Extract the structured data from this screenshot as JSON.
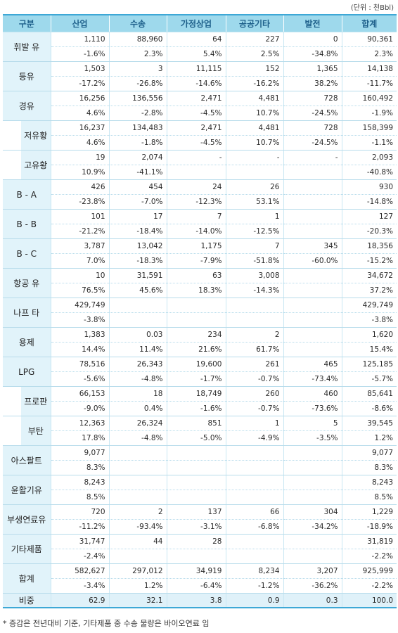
{
  "unit_label": "(단위 : 천Bbl)",
  "headers": [
    "구분",
    "산업",
    "수송",
    "가정상업",
    "공공기타",
    "발전",
    "합계"
  ],
  "rows": [
    {
      "name": "휘발 유",
      "level": 0,
      "values": [
        "1,110",
        "88,960",
        "64",
        "227",
        "0",
        "90,361"
      ],
      "changes": [
        "-1.6%",
        "2.3%",
        "5.4%",
        "2.5%",
        "-34.8%",
        "2.3%"
      ]
    },
    {
      "name": "등유",
      "level": 0,
      "values": [
        "1,503",
        "3",
        "11,115",
        "152",
        "1,365",
        "14,138"
      ],
      "changes": [
        "-17.2%",
        "-26.8%",
        "-14.6%",
        "-16.2%",
        "38.2%",
        "-11.7%"
      ]
    },
    {
      "name": "경유",
      "level": 0,
      "values": [
        "16,256",
        "136,556",
        "2,471",
        "4,481",
        "728",
        "160,492"
      ],
      "changes": [
        "4.6%",
        "-2.8%",
        "-4.5%",
        "10.7%",
        "-24.5%",
        "-1.9%"
      ]
    },
    {
      "name": "저유황",
      "level": 1,
      "values": [
        "16,237",
        "134,483",
        "2,471",
        "4,481",
        "728",
        "158,399"
      ],
      "changes": [
        "4.6%",
        "-1.8%",
        "-4.5%",
        "10.7%",
        "-24.5%",
        "-1.1%"
      ]
    },
    {
      "name": "고유황",
      "level": 1,
      "values": [
        "19",
        "2,074",
        "-",
        "-",
        "-",
        "2,093"
      ],
      "changes": [
        "10.9%",
        "-41.1%",
        "",
        "",
        "",
        "-40.8%"
      ]
    },
    {
      "name": "B - A",
      "level": 0,
      "values": [
        "426",
        "454",
        "24",
        "26",
        "",
        "930"
      ],
      "changes": [
        "-23.8%",
        "-7.0%",
        "-12.3%",
        "53.1%",
        "",
        "-14.8%"
      ]
    },
    {
      "name": "B - B",
      "level": 0,
      "values": [
        "101",
        "17",
        "7",
        "1",
        "",
        "127"
      ],
      "changes": [
        "-21.2%",
        "-18.4%",
        "-14.0%",
        "-12.5%",
        "",
        "-20.3%"
      ]
    },
    {
      "name": "B - C",
      "level": 0,
      "values": [
        "3,787",
        "13,042",
        "1,175",
        "7",
        "345",
        "18,356"
      ],
      "changes": [
        "7.0%",
        "-18.3%",
        "-7.9%",
        "-51.8%",
        "-60.0%",
        "-15.2%"
      ]
    },
    {
      "name": "항공 유",
      "level": 0,
      "values": [
        "10",
        "31,591",
        "63",
        "3,008",
        "",
        "34,672"
      ],
      "changes": [
        "76.5%",
        "45.6%",
        "18.3%",
        "-14.3%",
        "",
        "37.2%"
      ]
    },
    {
      "name": "나프 타",
      "level": 0,
      "values": [
        "429,749",
        "",
        "",
        "",
        "",
        "429,749"
      ],
      "changes": [
        "-3.8%",
        "",
        "",
        "",
        "",
        "-3.8%"
      ]
    },
    {
      "name": "용제",
      "level": 0,
      "values": [
        "1,383",
        "0.03",
        "234",
        "2",
        "",
        "1,620"
      ],
      "changes": [
        "14.4%",
        "11.4%",
        "21.6%",
        "61.7%",
        "",
        "15.4%"
      ]
    },
    {
      "name": "LPG",
      "level": 0,
      "values": [
        "78,516",
        "26,343",
        "19,600",
        "261",
        "465",
        "125,185"
      ],
      "changes": [
        "-5.6%",
        "-4.8%",
        "-1.7%",
        "-0.7%",
        "-73.4%",
        "-5.7%"
      ]
    },
    {
      "name": "프로판",
      "level": 1,
      "values": [
        "66,153",
        "18",
        "18,749",
        "260",
        "460",
        "85,641"
      ],
      "changes": [
        "-9.0%",
        "0.4%",
        "-1.6%",
        "-0.7%",
        "-73.6%",
        "-8.6%"
      ]
    },
    {
      "name": "부탄",
      "level": 1,
      "values": [
        "12,363",
        "26,324",
        "851",
        "1",
        "5",
        "39,545"
      ],
      "changes": [
        "17.8%",
        "-4.8%",
        "-5.0%",
        "-4.9%",
        "-3.5%",
        "1.2%"
      ]
    },
    {
      "name": "아스팔트",
      "level": 0,
      "values": [
        "9,077",
        "",
        "",
        "",
        "",
        "9,077"
      ],
      "changes": [
        "8.3%",
        "",
        "",
        "",
        "",
        "8.3%"
      ]
    },
    {
      "name": "윤활기유",
      "level": 0,
      "values": [
        "8,243",
        "",
        "",
        "",
        "",
        "8,243"
      ],
      "changes": [
        "8.5%",
        "",
        "",
        "",
        "",
        "8.5%"
      ]
    },
    {
      "name": "부생연료유",
      "level": 0,
      "values": [
        "720",
        "2",
        "137",
        "66",
        "304",
        "1,229"
      ],
      "changes": [
        "-11.2%",
        "-93.4%",
        "-3.1%",
        "-6.8%",
        "-34.2%",
        "-18.9%"
      ]
    },
    {
      "name": "기타제품",
      "level": 0,
      "values": [
        "31,747",
        "44",
        "28",
        "",
        "",
        "31,819"
      ],
      "changes": [
        "-2.4%",
        "",
        "",
        "",
        "",
        "-2.2%"
      ]
    },
    {
      "name": "합계",
      "level": 0,
      "values": [
        "582,627",
        "297,012",
        "34,919",
        "8,234",
        "3,207",
        "925,999"
      ],
      "changes": [
        "-3.4%",
        "1.2%",
        "-6.4%",
        "-1.2%",
        "-36.2%",
        "-2.2%"
      ]
    }
  ],
  "ratio_row": {
    "name": "비중",
    "values": [
      "62.9",
      "32.1",
      "3.8",
      "0.9",
      "0.3",
      "100.0"
    ]
  },
  "footnote": "* 증감은 전년대비 기준, 기타제품 중 수송 물량은 바이오연료 임",
  "colors": {
    "header_bg": "#9ed9ec",
    "header_text": "#1d5f8a",
    "category_bg": "#e1f3fa",
    "rule": "#3ea8d6"
  }
}
